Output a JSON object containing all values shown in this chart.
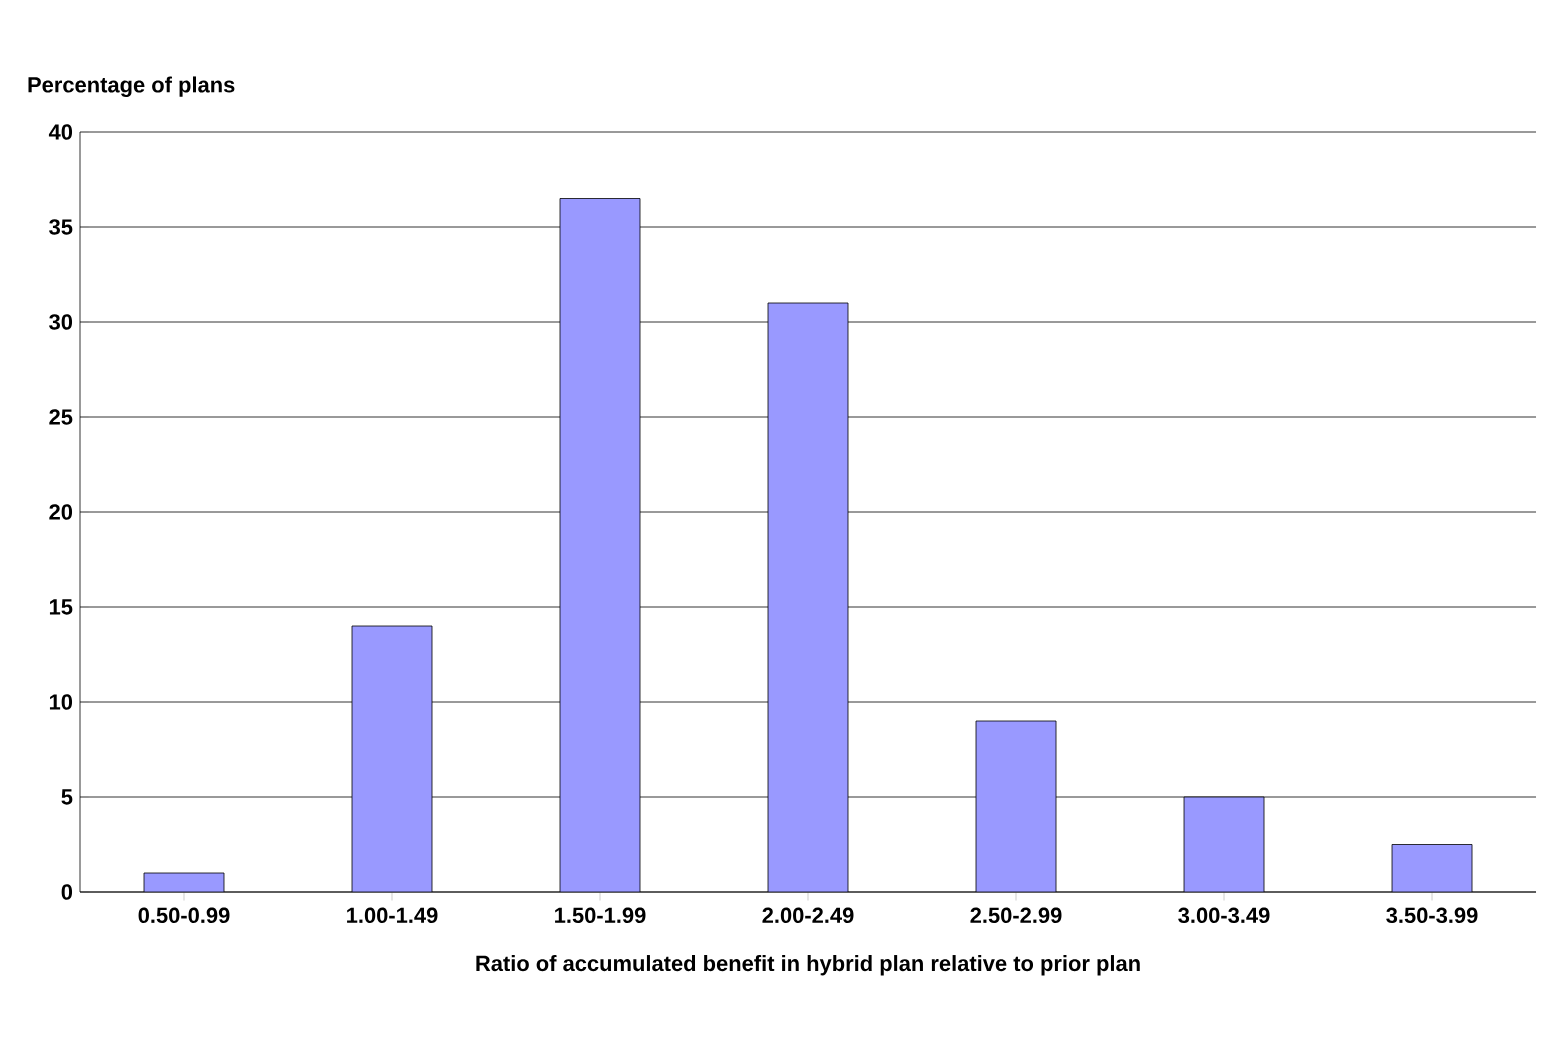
{
  "chart_data": {
    "type": "bar",
    "xlabel": "Ratio of accumulated benefit in hybrid plan relative to prior plan",
    "ylabel": "Percentage of plans",
    "categories": [
      "0.50-0.99",
      "1.00-1.49",
      "1.50-1.99",
      "2.00-2.49",
      "2.50-2.99",
      "3.00-3.49",
      "3.50-3.99"
    ],
    "values": [
      1,
      14,
      36.5,
      31,
      9,
      5,
      2.5
    ],
    "color": "#9999ff",
    "ylim": [
      0,
      40
    ],
    "yticks": [
      0,
      5,
      10,
      15,
      20,
      25,
      30,
      35,
      40
    ],
    "grid": "y"
  }
}
